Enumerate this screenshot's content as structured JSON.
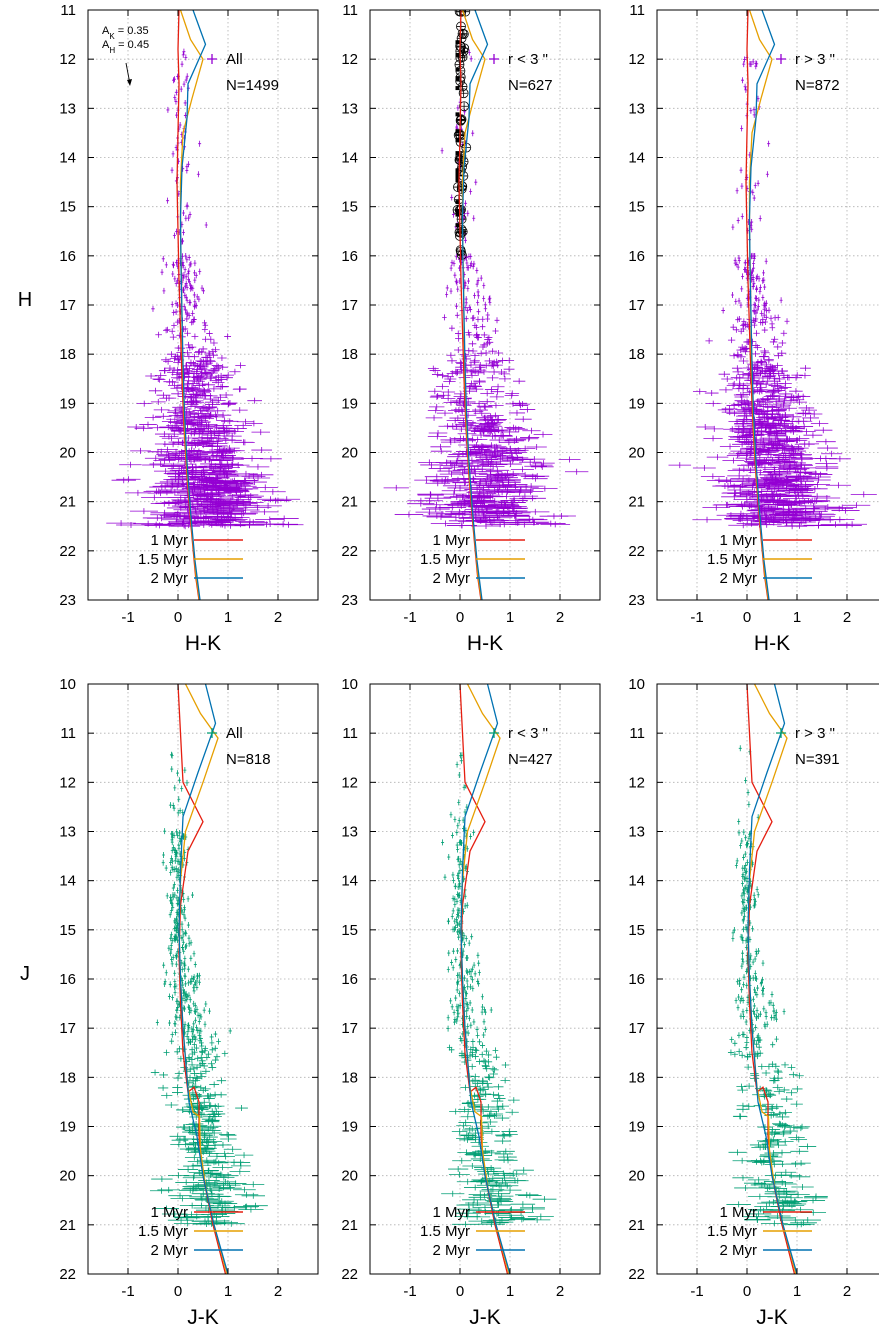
{
  "figure": {
    "row_ylabels": [
      "H",
      "J"
    ]
  },
  "colors": {
    "hk_points": "#9400d3",
    "jk_points": "#009e73",
    "myr1": "#e51e10",
    "myr1_5": "#e69f00",
    "myr2": "#0072b2",
    "grid": "#b0b0b0"
  },
  "isochrones": [
    {
      "label": "1 Myr",
      "color": "#e51e10"
    },
    {
      "label": "1.5 Myr",
      "color": "#e69f00"
    },
    {
      "label": "2 Myr",
      "color": "#0072b2"
    }
  ],
  "chart_data": [
    {
      "type": "scatter",
      "panel": "top-left",
      "xlabel": "H-K",
      "ylabel": "H",
      "xlim": [
        -1.8,
        2.8
      ],
      "ylim": [
        23,
        11
      ],
      "y_inverted": true,
      "xticks": [
        "-1",
        "0",
        "1",
        "2"
      ],
      "yticks": [
        "11",
        "12",
        "13",
        "14",
        "15",
        "16",
        "17",
        "18",
        "19",
        "20",
        "21",
        "22",
        "23"
      ],
      "grid": true,
      "legend": [
        "All",
        "N=1499"
      ],
      "extinction_arrow": [
        "A",
        "K",
        " = 0.35",
        "A",
        "H",
        " = 0.45"
      ],
      "point_color": "#9400d3",
      "points_shown": 1499
    },
    {
      "type": "scatter",
      "panel": "top-middle",
      "xlabel": "H-K",
      "ylabel": "H",
      "xlim": [
        -1.8,
        2.8
      ],
      "ylim": [
        23,
        11
      ],
      "y_inverted": true,
      "xticks": [
        "-1",
        "0",
        "1",
        "2"
      ],
      "yticks": [
        "11",
        "12",
        "13",
        "14",
        "15",
        "16",
        "17",
        "18",
        "19",
        "20",
        "21",
        "22",
        "23"
      ],
      "grid": true,
      "legend": [
        "r < 3 \"",
        "N=627"
      ],
      "point_color": "#9400d3",
      "points_shown": 627,
      "bright_markers": "black circled sources near H-K 0 from H 11 to 16"
    },
    {
      "type": "scatter",
      "panel": "top-right",
      "xlabel": "H-K",
      "ylabel": "H",
      "xlim": [
        -1.8,
        2.8
      ],
      "ylim": [
        23,
        11
      ],
      "y_inverted": true,
      "xticks": [
        "-1",
        "0",
        "1",
        "2"
      ],
      "yticks": [
        "11",
        "12",
        "13",
        "14",
        "15",
        "16",
        "17",
        "18",
        "19",
        "20",
        "21",
        "22",
        "23"
      ],
      "grid": true,
      "legend": [
        "r > 3 \"",
        "N=872"
      ],
      "point_color": "#9400d3",
      "points_shown": 872
    },
    {
      "type": "scatter",
      "panel": "bottom-left",
      "xlabel": "J-K",
      "ylabel": "J",
      "xlim": [
        -1.8,
        2.8
      ],
      "ylim": [
        22,
        10
      ],
      "y_inverted": true,
      "xticks": [
        "-1",
        "0",
        "1",
        "2"
      ],
      "yticks": [
        "10",
        "11",
        "12",
        "13",
        "14",
        "15",
        "16",
        "17",
        "18",
        "19",
        "20",
        "21",
        "22"
      ],
      "grid": true,
      "legend": [
        "All",
        "N=818"
      ],
      "point_color": "#009e73",
      "points_shown": 818
    },
    {
      "type": "scatter",
      "panel": "bottom-middle",
      "xlabel": "J-K",
      "ylabel": "J",
      "xlim": [
        -1.8,
        2.8
      ],
      "ylim": [
        22,
        10
      ],
      "y_inverted": true,
      "xticks": [
        "-1",
        "0",
        "1",
        "2"
      ],
      "yticks": [
        "10",
        "11",
        "12",
        "13",
        "14",
        "15",
        "16",
        "17",
        "18",
        "19",
        "20",
        "21",
        "22"
      ],
      "grid": true,
      "legend": [
        "r < 3 \"",
        "N=427"
      ],
      "point_color": "#009e73",
      "points_shown": 427
    },
    {
      "type": "scatter",
      "panel": "bottom-right",
      "xlabel": "J-K",
      "ylabel": "J",
      "xlim": [
        -1.8,
        2.8
      ],
      "ylim": [
        22,
        10
      ],
      "y_inverted": true,
      "xticks": [
        "-1",
        "0",
        "1",
        "2"
      ],
      "yticks": [
        "10",
        "11",
        "12",
        "13",
        "14",
        "15",
        "16",
        "17",
        "18",
        "19",
        "20",
        "21",
        "22"
      ],
      "grid": true,
      "legend": [
        "r > 3 \"",
        "N=391"
      ],
      "point_color": "#009e73",
      "points_shown": 391
    }
  ],
  "isochrone_curves": {
    "hk": {
      "myr1": [
        [
          0.02,
          11
        ],
        [
          0.0,
          11.8
        ],
        [
          0.02,
          12.5
        ],
        [
          0.0,
          13.5
        ],
        [
          -0.02,
          14.5
        ],
        [
          0.0,
          15.5
        ],
        [
          0.02,
          16.5
        ],
        [
          0.05,
          17.5
        ],
        [
          0.08,
          18.5
        ],
        [
          0.12,
          19.5
        ],
        [
          0.18,
          20.5
        ],
        [
          0.26,
          21.5
        ],
        [
          0.35,
          22.5
        ],
        [
          0.42,
          23
        ]
      ],
      "myr1_5": [
        [
          0.05,
          11
        ],
        [
          0.25,
          11.6
        ],
        [
          0.5,
          12.0
        ],
        [
          0.28,
          12.8
        ],
        [
          0.1,
          13.5
        ],
        [
          0.05,
          14.5
        ],
        [
          0.05,
          15.5
        ],
        [
          0.07,
          16.5
        ],
        [
          0.08,
          17.5
        ],
        [
          0.1,
          18.5
        ],
        [
          0.13,
          19.5
        ],
        [
          0.19,
          20.5
        ],
        [
          0.27,
          21.5
        ],
        [
          0.36,
          22.5
        ],
        [
          0.43,
          23
        ]
      ],
      "myr2": [
        [
          0.3,
          11
        ],
        [
          0.55,
          11.7
        ],
        [
          0.2,
          12.5
        ],
        [
          0.18,
          13.2
        ],
        [
          0.08,
          14.2
        ],
        [
          0.05,
          15.2
        ],
        [
          0.06,
          16.2
        ],
        [
          0.08,
          17.2
        ],
        [
          0.1,
          18.2
        ],
        [
          0.13,
          19.2
        ],
        [
          0.18,
          20.2
        ],
        [
          0.25,
          21.2
        ],
        [
          0.34,
          22.2
        ],
        [
          0.44,
          23
        ]
      ]
    },
    "jk": {
      "myr1": [
        [
          0.0,
          10
        ],
        [
          0.05,
          11
        ],
        [
          0.1,
          12
        ],
        [
          0.5,
          12.8
        ],
        [
          0.2,
          13.4
        ],
        [
          0.05,
          14.5
        ],
        [
          0.02,
          15.5
        ],
        [
          0.05,
          16.5
        ],
        [
          0.1,
          17.5
        ],
        [
          0.2,
          18.3
        ],
        [
          0.32,
          18.2
        ],
        [
          0.42,
          18.5
        ],
        [
          0.42,
          19.2
        ],
        [
          0.5,
          20
        ],
        [
          0.7,
          21
        ],
        [
          0.95,
          22
        ]
      ],
      "myr1_5": [
        [
          0.15,
          10
        ],
        [
          0.45,
          10.6
        ],
        [
          0.8,
          11.1
        ],
        [
          0.5,
          12
        ],
        [
          0.15,
          13
        ],
        [
          0.05,
          14
        ],
        [
          0.02,
          15
        ],
        [
          0.05,
          16
        ],
        [
          0.1,
          17
        ],
        [
          0.2,
          18.2
        ],
        [
          0.3,
          18.7
        ],
        [
          0.43,
          18.8
        ],
        [
          0.45,
          19.5
        ],
        [
          0.55,
          20.2
        ],
        [
          0.72,
          21
        ],
        [
          0.98,
          22
        ]
      ],
      "myr2": [
        [
          0.55,
          10
        ],
        [
          0.75,
          10.8
        ],
        [
          0.4,
          11.8
        ],
        [
          0.1,
          12.7
        ],
        [
          0.05,
          13.8
        ],
        [
          0.02,
          15
        ],
        [
          0.05,
          16
        ],
        [
          0.1,
          17
        ],
        [
          0.22,
          18.5
        ],
        [
          0.38,
          19.2
        ],
        [
          0.5,
          20.0
        ],
        [
          0.72,
          21
        ],
        [
          1.0,
          22
        ]
      ]
    }
  }
}
